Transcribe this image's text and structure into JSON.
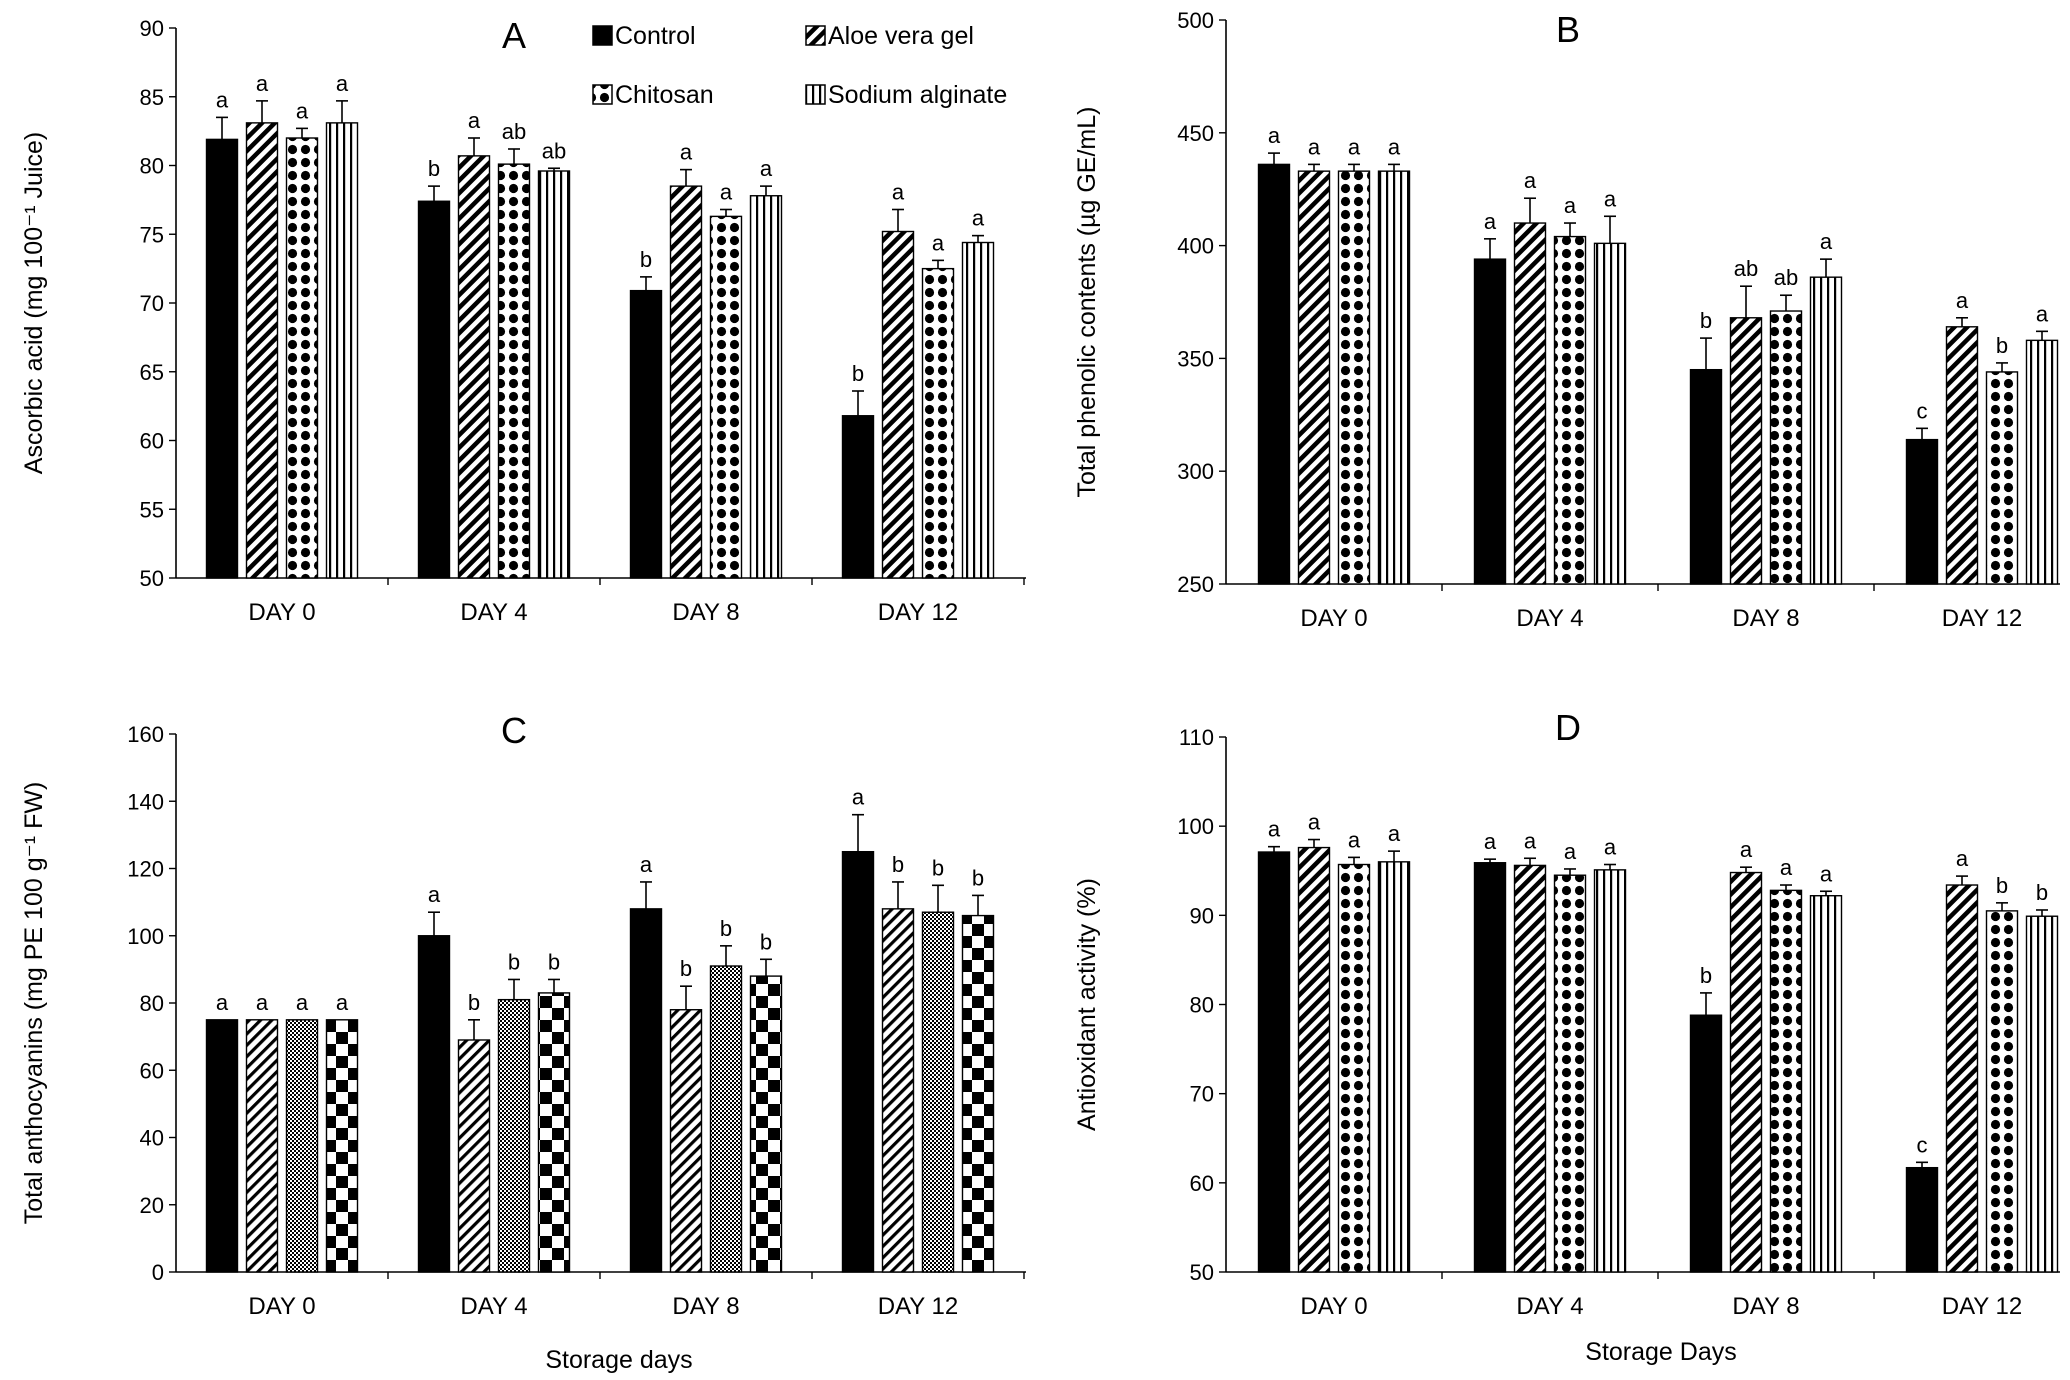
{
  "legend": [
    {
      "label": "Control",
      "pattern": "solid"
    },
    {
      "label": "Aloe vera gel",
      "pattern": "diag-wide"
    },
    {
      "label": "Chitosan",
      "pattern": "dots"
    },
    {
      "label": "Sodium alginate",
      "pattern": "vlines"
    }
  ],
  "colors": {
    "ink": "#000000",
    "background": "#ffffff"
  },
  "chart_data": [
    {
      "type": "bar",
      "panel": "A",
      "title": "",
      "ylabel": "Ascorbic acid (mg 100⁻¹ Juice)",
      "xlabel": "",
      "ylim": [
        50,
        90
      ],
      "ytick_step": 5,
      "categories": [
        "DAY 0",
        "DAY 4",
        "DAY 8",
        "DAY 12"
      ],
      "patterns": [
        "solid",
        "diag-wide",
        "dots",
        "vlines"
      ],
      "series": [
        {
          "name": "Control",
          "values": [
            81.9,
            77.4,
            70.9,
            61.8
          ],
          "errors": [
            1.6,
            1.1,
            1.0,
            1.8
          ],
          "letters": [
            "a",
            "b",
            "b",
            "b"
          ]
        },
        {
          "name": "Aloe vera gel",
          "values": [
            83.1,
            80.7,
            78.5,
            75.2
          ],
          "errors": [
            1.6,
            1.3,
            1.2,
            1.6
          ],
          "letters": [
            "a",
            "a",
            "a",
            "a"
          ]
        },
        {
          "name": "Chitosan",
          "values": [
            82.0,
            80.1,
            76.3,
            72.5
          ],
          "errors": [
            0.7,
            1.1,
            0.5,
            0.6
          ],
          "letters": [
            "a",
            "ab",
            "a",
            "a"
          ]
        },
        {
          "name": "Sodium alginate",
          "values": [
            83.1,
            79.6,
            77.8,
            74.4
          ],
          "errors": [
            1.6,
            0.2,
            0.7,
            0.5
          ],
          "letters": [
            "a",
            "ab",
            "a",
            "a"
          ]
        }
      ]
    },
    {
      "type": "bar",
      "panel": "B",
      "title": "",
      "ylabel": "Total phenolic contents (µg GE/mL)",
      "xlabel": "",
      "ylim": [
        250,
        500
      ],
      "ytick_step": 50,
      "categories": [
        "DAY 0",
        "DAY 4",
        "DAY 8",
        "DAY 12"
      ],
      "patterns": [
        "solid",
        "diag-wide",
        "dots",
        "vlines"
      ],
      "series": [
        {
          "name": "Control",
          "values": [
            436,
            394,
            345,
            314
          ],
          "errors": [
            5,
            9,
            14,
            5
          ],
          "letters": [
            "a",
            "a",
            "b",
            "c"
          ]
        },
        {
          "name": "Aloe vera gel",
          "values": [
            433,
            410,
            368,
            364
          ],
          "errors": [
            3,
            11,
            14,
            4
          ],
          "letters": [
            "a",
            "a",
            "ab",
            "a"
          ]
        },
        {
          "name": "Chitosan",
          "values": [
            433,
            404,
            371,
            344
          ],
          "errors": [
            3,
            6,
            7,
            4
          ],
          "letters": [
            "a",
            "a",
            "ab",
            "b"
          ]
        },
        {
          "name": "Sodium alginate",
          "values": [
            433,
            401,
            386,
            358
          ],
          "errors": [
            3,
            12,
            8,
            4
          ],
          "letters": [
            "a",
            "a",
            "a",
            "a"
          ]
        }
      ]
    },
    {
      "type": "bar",
      "panel": "C",
      "title": "",
      "ylabel": "Total anthocyanins (mg PE 100 g⁻¹ FW)",
      "xlabel": "Storage days",
      "ylim": [
        0,
        160
      ],
      "ytick_step": 20,
      "categories": [
        "DAY 0",
        "DAY 4",
        "DAY 8",
        "DAY 12"
      ],
      "patterns": [
        "solid",
        "diag-narrow",
        "fine-check",
        "checker"
      ],
      "series": [
        {
          "name": "Control",
          "values": [
            75,
            100,
            108,
            125
          ],
          "errors": [
            0,
            7,
            8,
            11
          ],
          "letters": [
            "a",
            "a",
            "a",
            "a"
          ]
        },
        {
          "name": "Aloe vera gel",
          "values": [
            75,
            69,
            78,
            108
          ],
          "errors": [
            0,
            6,
            7,
            8
          ],
          "letters": [
            "a",
            "b",
            "b",
            "b"
          ]
        },
        {
          "name": "Chitosan",
          "values": [
            75,
            81,
            91,
            107
          ],
          "errors": [
            0,
            6,
            6,
            8
          ],
          "letters": [
            "a",
            "b",
            "b",
            "b"
          ]
        },
        {
          "name": "Sodium alginate",
          "values": [
            75,
            83,
            88,
            106
          ],
          "errors": [
            0,
            4,
            5,
            6
          ],
          "letters": [
            "a",
            "b",
            "b",
            "b"
          ]
        }
      ]
    },
    {
      "type": "bar",
      "panel": "D",
      "title": "",
      "ylabel": "Antioxidant activity (%)",
      "xlabel": "Storage Days",
      "ylim": [
        50,
        110
      ],
      "ytick_step": 10,
      "categories": [
        "DAY 0",
        "DAY 4",
        "DAY 8",
        "DAY 12"
      ],
      "patterns": [
        "solid",
        "diag-wide",
        "dots",
        "vlines"
      ],
      "series": [
        {
          "name": "Control",
          "values": [
            97.1,
            95.9,
            78.8,
            61.7
          ],
          "errors": [
            0.6,
            0.4,
            2.5,
            0.6
          ],
          "letters": [
            "a",
            "a",
            "b",
            "c"
          ]
        },
        {
          "name": "Aloe vera gel",
          "values": [
            97.6,
            95.6,
            94.8,
            93.4
          ],
          "errors": [
            0.9,
            0.8,
            0.6,
            1.0
          ],
          "letters": [
            "a",
            "a",
            "a",
            "a"
          ]
        },
        {
          "name": "Chitosan",
          "values": [
            95.7,
            94.5,
            92.8,
            90.5
          ],
          "errors": [
            0.8,
            0.7,
            0.6,
            0.9
          ],
          "letters": [
            "a",
            "a",
            "a",
            "b"
          ]
        },
        {
          "name": "Sodium alginate",
          "values": [
            96.0,
            95.1,
            92.2,
            89.9
          ],
          "errors": [
            1.2,
            0.6,
            0.5,
            0.7
          ],
          "letters": [
            "a",
            "a",
            "a",
            "b"
          ]
        }
      ]
    }
  ]
}
